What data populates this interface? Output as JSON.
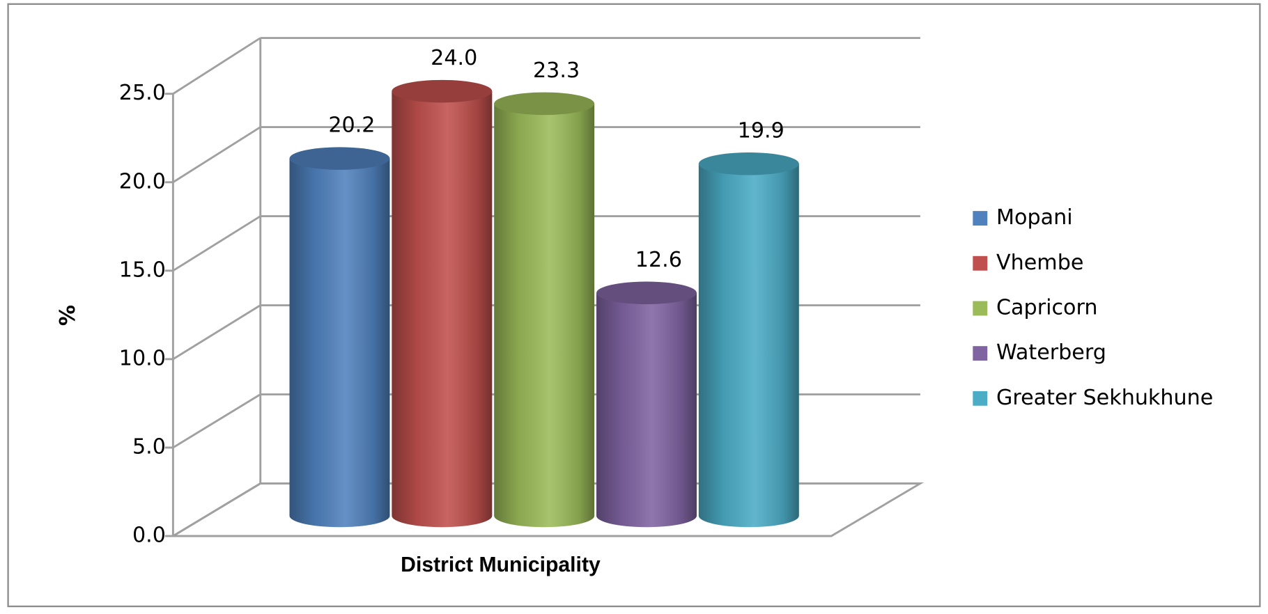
{
  "chart_data": {
    "type": "bar3d",
    "xlabel": "District Municipality",
    "ylabel": "%",
    "series": [
      {
        "name": "Mopani",
        "color": "#4f81bd",
        "values": [
          20.2
        ],
        "value_labels": [
          "20.2"
        ]
      },
      {
        "name": "Vhembe",
        "color": "#c0504d",
        "values": [
          24.0
        ],
        "value_labels": [
          "24.0"
        ]
      },
      {
        "name": "Capricorn",
        "color": "#9bbb59",
        "values": [
          23.3
        ],
        "value_labels": [
          "23.3"
        ]
      },
      {
        "name": "Waterberg",
        "color": "#8064a2",
        "values": [
          12.6
        ],
        "value_labels": [
          "12.6"
        ]
      },
      {
        "name": "Greater Sekhukhune",
        "color": "#4bacc6",
        "values": [
          19.9
        ],
        "value_labels": [
          "19.9"
        ]
      }
    ],
    "ylim": [
      0,
      25
    ],
    "yticks": [
      {
        "value": 0,
        "label": "0.0"
      },
      {
        "value": 5,
        "label": "5.0"
      },
      {
        "value": 10,
        "label": "10.0"
      },
      {
        "value": 15,
        "label": "15.0"
      },
      {
        "value": 20,
        "label": "20.0"
      },
      {
        "value": 25,
        "label": "25.0"
      }
    ],
    "grid": true,
    "legend": "right"
  }
}
